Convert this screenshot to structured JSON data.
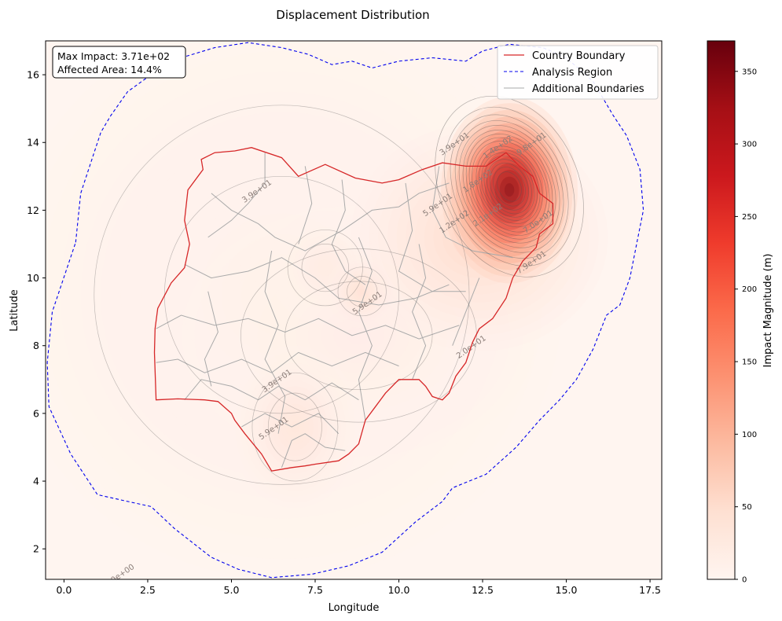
{
  "chart_data": {
    "type": "heatmap",
    "title": "Displacement Distribution",
    "xlabel": "Longitude",
    "ylabel": "Latitude",
    "xlim": [
      -0.55,
      17.85
    ],
    "ylim": [
      1.1,
      17.0
    ],
    "x_ticks": [
      "0.0",
      "2.5",
      "5.0",
      "7.5",
      "10.0",
      "12.5",
      "15.0",
      "17.5"
    ],
    "x_tick_values": [
      0,
      2.5,
      5,
      7.5,
      10,
      12.5,
      15,
      17.5
    ],
    "y_ticks": [
      "2",
      "4",
      "6",
      "8",
      "10",
      "12",
      "14",
      "16"
    ],
    "y_tick_values": [
      2,
      4,
      6,
      8,
      10,
      12,
      14,
      16
    ],
    "colorbar": {
      "label": "Impact Magnitude (m)",
      "range": [
        0,
        371
      ],
      "ticks": [
        "0",
        "50",
        "100",
        "150",
        "200",
        "250",
        "300",
        "350"
      ],
      "tick_values": [
        0,
        50,
        100,
        150,
        200,
        250,
        300,
        350
      ],
      "colormap": "Reds"
    },
    "annotation": {
      "line1": "Max Impact: 3.71e+02",
      "line2": "Affected Area: 14.4%"
    },
    "legend": {
      "placement": "top-right",
      "entries": [
        {
          "label": "Country Boundary",
          "color": "#d62728",
          "style": "solid"
        },
        {
          "label": "Analysis Region",
          "color": "#0000ee",
          "style": "dashed"
        },
        {
          "label": "Additional Boundaries",
          "color": "#aaaaaa",
          "style": "solid"
        }
      ]
    },
    "contour_labels": [
      {
        "text": "3.9e+01",
        "lon": 5.8,
        "lat": 12.5
      },
      {
        "text": "3.9e+01",
        "lon": 11.7,
        "lat": 13.9
      },
      {
        "text": "1.4e+02",
        "lon": 13.0,
        "lat": 13.8
      },
      {
        "text": "9.8e+01",
        "lon": 14.0,
        "lat": 13.9
      },
      {
        "text": "5.9e+01",
        "lon": 11.2,
        "lat": 12.1
      },
      {
        "text": "1.2e+02",
        "lon": 11.7,
        "lat": 11.6
      },
      {
        "text": "1.8e+02",
        "lon": 12.4,
        "lat": 12.8
      },
      {
        "text": "2.1e+02",
        "lon": 12.7,
        "lat": 11.8
      },
      {
        "text": "7.0e+01",
        "lon": 14.2,
        "lat": 11.6
      },
      {
        "text": "7.9e+01",
        "lon": 14.0,
        "lat": 10.4
      },
      {
        "text": "5.9e+01",
        "lon": 9.1,
        "lat": 9.2
      },
      {
        "text": "2.0e+01",
        "lon": 12.2,
        "lat": 7.9
      },
      {
        "text": "3.9e+01",
        "lon": 6.4,
        "lat": 6.9
      },
      {
        "text": "5.9e+01",
        "lon": 6.3,
        "lat": 5.5
      },
      {
        "text": "0.0e+00",
        "lon": 1.7,
        "lat": 1.15
      }
    ],
    "hotspots": [
      {
        "lon": 13.3,
        "lat": 12.6,
        "sx": 0.85,
        "sy": 1.15,
        "value": 371
      },
      {
        "lon": 13.4,
        "lat": 13.2,
        "sx": 0.35,
        "sy": 0.45,
        "value": 120
      },
      {
        "lon": 13.2,
        "lat": 11.8,
        "sx": 0.3,
        "sy": 0.3,
        "value": 40
      },
      {
        "lon": 12.4,
        "lat": 11.2,
        "sx": 1.6,
        "sy": 1.4,
        "value": 60
      },
      {
        "lon": 8.9,
        "lat": 9.6,
        "sx": 0.45,
        "sy": 0.45,
        "value": 45
      },
      {
        "lon": 7.8,
        "lat": 10.3,
        "sx": 0.7,
        "sy": 0.7,
        "value": 22
      },
      {
        "lon": 6.9,
        "lat": 5.6,
        "sx": 0.8,
        "sy": 1.0,
        "value": 35
      },
      {
        "lon": 8.8,
        "lat": 8.3,
        "sx": 2.2,
        "sy": 1.6,
        "value": 15
      },
      {
        "lon": 6.5,
        "lat": 9.5,
        "sx": 3.5,
        "sy": 3.5,
        "value": 10
      }
    ],
    "country_boundary": [
      [
        2.75,
        6.4
      ],
      [
        3.4,
        6.43
      ],
      [
        4.2,
        6.4
      ],
      [
        4.6,
        6.35
      ],
      [
        5.0,
        6.0
      ],
      [
        5.1,
        5.8
      ],
      [
        5.4,
        5.4
      ],
      [
        5.9,
        4.8
      ],
      [
        6.2,
        4.3
      ],
      [
        6.8,
        4.4
      ],
      [
        7.2,
        4.45
      ],
      [
        7.5,
        4.5
      ],
      [
        8.2,
        4.6
      ],
      [
        8.5,
        4.8
      ],
      [
        8.8,
        5.1
      ],
      [
        9.0,
        5.8
      ],
      [
        9.3,
        6.2
      ],
      [
        9.6,
        6.6
      ],
      [
        10.0,
        7.0
      ],
      [
        10.6,
        7.0
      ],
      [
        10.8,
        6.8
      ],
      [
        11.0,
        6.5
      ],
      [
        11.3,
        6.4
      ],
      [
        11.5,
        6.6
      ],
      [
        11.7,
        7.1
      ],
      [
        12.0,
        7.5
      ],
      [
        12.2,
        8.1
      ],
      [
        12.4,
        8.5
      ],
      [
        12.8,
        8.8
      ],
      [
        13.2,
        9.4
      ],
      [
        13.4,
        10.0
      ],
      [
        13.7,
        10.5
      ],
      [
        14.1,
        10.9
      ],
      [
        14.2,
        11.3
      ],
      [
        14.6,
        11.6
      ],
      [
        14.6,
        12.2
      ],
      [
        14.2,
        12.5
      ],
      [
        14.0,
        13.0
      ],
      [
        13.6,
        13.3
      ],
      [
        13.2,
        13.7
      ],
      [
        12.6,
        13.3
      ],
      [
        12.0,
        13.3
      ],
      [
        11.3,
        13.4
      ],
      [
        10.7,
        13.2
      ],
      [
        10.0,
        12.9
      ],
      [
        9.5,
        12.8
      ],
      [
        8.7,
        12.95
      ],
      [
        7.8,
        13.35
      ],
      [
        7.0,
        13.0
      ],
      [
        6.5,
        13.55
      ],
      [
        5.6,
        13.85
      ],
      [
        5.1,
        13.75
      ],
      [
        4.5,
        13.7
      ],
      [
        4.1,
        13.5
      ],
      [
        4.15,
        13.2
      ],
      [
        3.7,
        12.6
      ],
      [
        3.6,
        11.7
      ],
      [
        3.75,
        11.0
      ],
      [
        3.6,
        10.3
      ],
      [
        3.2,
        9.85
      ],
      [
        2.8,
        9.1
      ],
      [
        2.72,
        8.5
      ],
      [
        2.7,
        7.8
      ],
      [
        2.75,
        6.4
      ]
    ],
    "analysis_region": [
      [
        0.35,
        11.05
      ],
      [
        0.5,
        12.5
      ],
      [
        0.8,
        13.4
      ],
      [
        1.1,
        14.3
      ],
      [
        1.4,
        14.8
      ],
      [
        1.9,
        15.5
      ],
      [
        2.6,
        16.0
      ],
      [
        3.5,
        16.5
      ],
      [
        4.5,
        16.8
      ],
      [
        5.5,
        16.95
      ],
      [
        6.5,
        16.8
      ],
      [
        7.3,
        16.6
      ],
      [
        8.0,
        16.3
      ],
      [
        8.6,
        16.4
      ],
      [
        9.2,
        16.2
      ],
      [
        10.0,
        16.4
      ],
      [
        11.0,
        16.5
      ],
      [
        12.0,
        16.4
      ],
      [
        12.5,
        16.7
      ],
      [
        13.3,
        16.9
      ],
      [
        14.3,
        16.8
      ],
      [
        15.0,
        16.5
      ],
      [
        15.8,
        15.8
      ],
      [
        16.4,
        14.8
      ],
      [
        16.8,
        14.2
      ],
      [
        17.2,
        13.2
      ],
      [
        17.3,
        12.0
      ],
      [
        17.1,
        11.0
      ],
      [
        16.9,
        10.0
      ],
      [
        16.6,
        9.2
      ],
      [
        16.2,
        8.9
      ],
      [
        15.8,
        7.9
      ],
      [
        15.3,
        7.0
      ],
      [
        14.8,
        6.4
      ],
      [
        14.2,
        5.8
      ],
      [
        13.5,
        5.0
      ],
      [
        12.6,
        4.2
      ],
      [
        11.6,
        3.8
      ],
      [
        11.3,
        3.4
      ],
      [
        10.5,
        2.8
      ],
      [
        9.5,
        1.9
      ],
      [
        8.5,
        1.5
      ],
      [
        7.4,
        1.25
      ],
      [
        6.2,
        1.15
      ],
      [
        5.2,
        1.4
      ],
      [
        4.4,
        1.75
      ],
      [
        3.3,
        2.6
      ],
      [
        2.6,
        3.25
      ],
      [
        1.9,
        3.4
      ],
      [
        1.0,
        3.6
      ],
      [
        0.2,
        4.8
      ],
      [
        -0.45,
        6.2
      ],
      [
        -0.5,
        7.5
      ],
      [
        -0.35,
        9.0
      ],
      [
        0.35,
        11.05
      ]
    ],
    "additional_boundaries": [
      [
        [
          4.4,
          12.5
        ],
        [
          5.0,
          12.0
        ],
        [
          5.8,
          11.6
        ],
        [
          6.3,
          11.2
        ],
        [
          7.2,
          10.8
        ],
        [
          8.3,
          11.4
        ],
        [
          9.2,
          12.0
        ],
        [
          10.0,
          12.1
        ],
        [
          10.6,
          12.5
        ],
        [
          11.5,
          12.8
        ]
      ],
      [
        [
          6.0,
          13.7
        ],
        [
          6.0,
          12.8
        ],
        [
          5.5,
          12.2
        ],
        [
          5.0,
          11.7
        ],
        [
          4.3,
          11.2
        ]
      ],
      [
        [
          7.2,
          13.3
        ],
        [
          7.4,
          12.2
        ],
        [
          7.0,
          11.0
        ]
      ],
      [
        [
          8.3,
          12.9
        ],
        [
          8.4,
          12.0
        ],
        [
          8.0,
          11.0
        ],
        [
          8.4,
          10.2
        ],
        [
          9.0,
          9.8
        ]
      ],
      [
        [
          10.2,
          12.8
        ],
        [
          10.4,
          11.4
        ],
        [
          10.0,
          10.2
        ],
        [
          11.0,
          9.6
        ],
        [
          12.0,
          9.6
        ]
      ],
      [
        [
          11.2,
          13.3
        ],
        [
          11.0,
          12.0
        ],
        [
          11.4,
          11.2
        ],
        [
          12.2,
          10.8
        ],
        [
          13.4,
          10.6
        ]
      ],
      [
        [
          3.6,
          10.4
        ],
        [
          4.4,
          10.0
        ],
        [
          5.5,
          10.2
        ],
        [
          6.5,
          10.6
        ],
        [
          7.5,
          10.0
        ],
        [
          8.2,
          9.4
        ],
        [
          9.4,
          9.2
        ],
        [
          10.5,
          9.4
        ],
        [
          11.5,
          9.8
        ]
      ],
      [
        [
          2.75,
          8.5
        ],
        [
          3.5,
          8.9
        ],
        [
          4.5,
          8.6
        ],
        [
          5.5,
          8.8
        ],
        [
          6.6,
          8.4
        ],
        [
          7.6,
          8.8
        ],
        [
          8.6,
          8.3
        ],
        [
          9.6,
          8.6
        ],
        [
          10.6,
          8.2
        ],
        [
          11.8,
          8.6
        ]
      ],
      [
        [
          2.75,
          7.5
        ],
        [
          3.4,
          7.6
        ],
        [
          4.2,
          7.2
        ],
        [
          5.3,
          7.6
        ],
        [
          6.2,
          7.2
        ],
        [
          7.0,
          7.8
        ],
        [
          8.0,
          7.4
        ],
        [
          9.0,
          7.8
        ],
        [
          10.0,
          7.4
        ]
      ],
      [
        [
          3.6,
          6.4
        ],
        [
          4.1,
          7.0
        ],
        [
          5.0,
          6.8
        ],
        [
          5.8,
          6.4
        ],
        [
          6.4,
          6.8
        ],
        [
          7.2,
          6.4
        ],
        [
          8.0,
          6.9
        ],
        [
          8.8,
          6.4
        ]
      ],
      [
        [
          5.3,
          5.6
        ],
        [
          6.0,
          6.0
        ],
        [
          6.8,
          5.6
        ],
        [
          7.6,
          6.0
        ],
        [
          8.2,
          5.4
        ]
      ],
      [
        [
          6.5,
          4.4
        ],
        [
          6.8,
          5.2
        ],
        [
          7.2,
          5.4
        ],
        [
          7.8,
          5.0
        ],
        [
          8.4,
          4.9
        ]
      ],
      [
        [
          4.3,
          9.6
        ],
        [
          4.6,
          8.4
        ],
        [
          4.2,
          7.6
        ],
        [
          4.4,
          6.8
        ]
      ],
      [
        [
          6.2,
          10.8
        ],
        [
          6.0,
          9.6
        ],
        [
          6.4,
          8.6
        ],
        [
          6.0,
          7.6
        ],
        [
          6.6,
          6.5
        ],
        [
          6.4,
          5.4
        ]
      ],
      [
        [
          8.8,
          11.2
        ],
        [
          9.2,
          10.2
        ],
        [
          8.8,
          9.0
        ],
        [
          9.2,
          8.0
        ],
        [
          8.8,
          7.0
        ],
        [
          9.0,
          5.8
        ]
      ],
      [
        [
          10.6,
          11.0
        ],
        [
          10.8,
          10.0
        ],
        [
          10.4,
          9.0
        ],
        [
          10.8,
          8.0
        ],
        [
          10.4,
          7.0
        ]
      ],
      [
        [
          12.4,
          10.0
        ],
        [
          12.0,
          9.0
        ],
        [
          11.6,
          8.0
        ]
      ]
    ],
    "contour_levels": [
      20,
      39,
      59,
      79,
      98,
      120,
      140,
      160,
      180,
      210,
      230,
      250,
      270,
      290,
      310,
      330,
      350
    ]
  }
}
